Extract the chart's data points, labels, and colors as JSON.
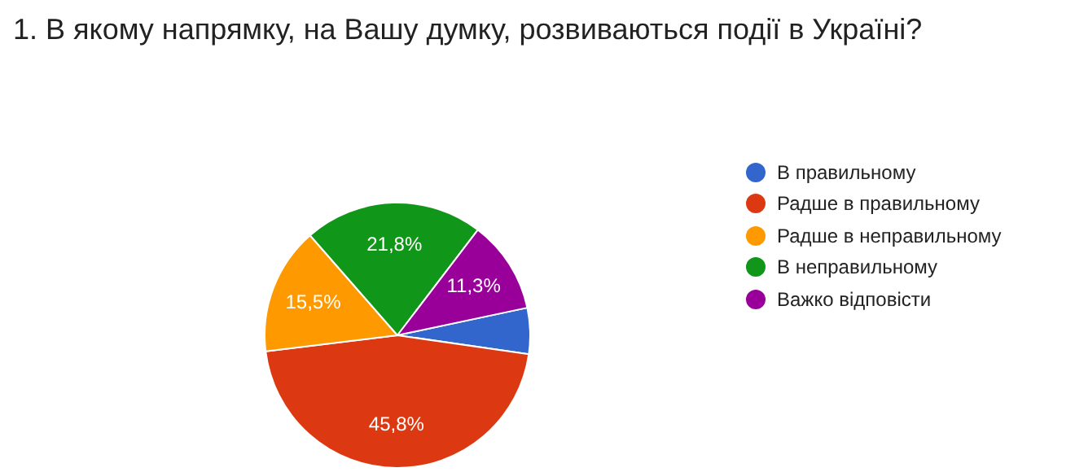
{
  "chart_data": {
    "type": "pie",
    "title": "1. В якому напрямку, на Вашу думку, розвиваються події в Україні?",
    "categories": [
      "В правильному",
      "Радше в правильному",
      "Радше в неправильному",
      "В неправильному",
      "Важко відповісти"
    ],
    "values": [
      5.6,
      45.8,
      15.5,
      21.8,
      11.3
    ],
    "colors": [
      "#3366cc",
      "#dc3912",
      "#ff9900",
      "#109618",
      "#990099"
    ],
    "value_labels": [
      null,
      "45,8%",
      "15,5%",
      "21,8%",
      "11,3%"
    ],
    "legend": "right"
  }
}
